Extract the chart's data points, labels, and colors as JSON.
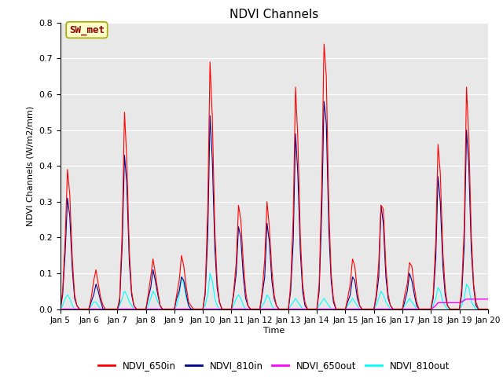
{
  "title": "NDVI Channels",
  "ylabel": "NDVI Channels (W/m2/mm)",
  "xlabel": "Time",
  "xlim_start": 5.0,
  "xlim_end": 20.0,
  "ylim": [
    0.0,
    0.8
  ],
  "yticks": [
    0.0,
    0.1,
    0.2,
    0.3,
    0.4,
    0.5,
    0.6,
    0.7,
    0.8
  ],
  "xtick_positions": [
    5,
    6,
    7,
    8,
    9,
    10,
    11,
    12,
    13,
    14,
    15,
    16,
    17,
    18,
    19,
    20
  ],
  "xtick_labels": [
    "Jan 5",
    "Jan 6",
    "Jan 7",
    "Jan 8",
    "Jan 9",
    "Jan 10",
    "Jan 11",
    "Jan 12",
    "Jan 13",
    "Jan 14",
    "Jan 15",
    "Jan 16",
    "Jan 17",
    "Jan 18",
    "Jan 19",
    "Jan 20"
  ],
  "annotation_text": "SW_met",
  "annotation_color": "#8B0000",
  "annotation_bg": "#ffffcc",
  "annotation_edge": "#aaaa00",
  "background_color": "#e8e8e8",
  "legend_labels": [
    "NDVI_650in",
    "NDVI_810in",
    "NDVI_650out",
    "NDVI_810out"
  ],
  "legend_colors": [
    "red",
    "darkblue",
    "magenta",
    "cyan"
  ],
  "colors": {
    "NDVI_650in": "red",
    "NDVI_810in": "darkblue",
    "NDVI_650out": "magenta",
    "NDVI_810out": "cyan"
  },
  "series": {
    "x": [
      5.0,
      5.08,
      5.17,
      5.25,
      5.33,
      5.42,
      5.5,
      5.58,
      5.67,
      5.75,
      5.83,
      5.92,
      6.0,
      6.08,
      6.17,
      6.25,
      6.33,
      6.42,
      6.5,
      6.58,
      6.67,
      6.75,
      6.83,
      6.92,
      7.0,
      7.08,
      7.17,
      7.25,
      7.33,
      7.42,
      7.5,
      7.58,
      7.67,
      7.75,
      7.83,
      7.92,
      8.0,
      8.08,
      8.17,
      8.25,
      8.33,
      8.42,
      8.5,
      8.58,
      8.67,
      8.75,
      8.83,
      8.92,
      9.0,
      9.08,
      9.17,
      9.25,
      9.33,
      9.42,
      9.5,
      9.58,
      9.67,
      9.75,
      9.83,
      9.92,
      10.0,
      10.08,
      10.17,
      10.25,
      10.33,
      10.42,
      10.5,
      10.58,
      10.67,
      10.75,
      10.83,
      10.92,
      11.0,
      11.08,
      11.17,
      11.25,
      11.33,
      11.42,
      11.5,
      11.58,
      11.67,
      11.75,
      11.83,
      11.92,
      12.0,
      12.08,
      12.17,
      12.25,
      12.33,
      12.42,
      12.5,
      12.58,
      12.67,
      12.75,
      12.83,
      12.92,
      13.0,
      13.08,
      13.17,
      13.25,
      13.33,
      13.42,
      13.5,
      13.58,
      13.67,
      13.75,
      13.83,
      13.92,
      14.0,
      14.08,
      14.17,
      14.25,
      14.33,
      14.42,
      14.5,
      14.58,
      14.67,
      14.75,
      14.83,
      14.92,
      15.0,
      15.08,
      15.17,
      15.25,
      15.33,
      15.42,
      15.5,
      15.58,
      15.67,
      15.75,
      15.83,
      15.92,
      16.0,
      16.08,
      16.17,
      16.25,
      16.33,
      16.42,
      16.5,
      16.58,
      16.67,
      16.75,
      16.83,
      16.92,
      17.0,
      17.08,
      17.17,
      17.25,
      17.33,
      17.42,
      17.5,
      17.58,
      17.67,
      17.75,
      17.83,
      17.92,
      18.0,
      18.08,
      18.17,
      18.25,
      18.33,
      18.42,
      18.5,
      18.58,
      18.67,
      18.75,
      18.83,
      18.92,
      19.0,
      19.08,
      19.17,
      19.25,
      19.33,
      19.42,
      19.5,
      19.58,
      19.67,
      19.75,
      19.83,
      19.92,
      20.0
    ],
    "NDVI_650in": [
      0.0,
      0.05,
      0.2,
      0.39,
      0.32,
      0.14,
      0.04,
      0.01,
      0.0,
      0.0,
      0.0,
      0.0,
      0.0,
      0.03,
      0.08,
      0.11,
      0.07,
      0.03,
      0.01,
      0.0,
      0.0,
      0.0,
      0.0,
      0.0,
      0.0,
      0.03,
      0.22,
      0.55,
      0.42,
      0.16,
      0.05,
      0.01,
      0.0,
      0.0,
      0.0,
      0.0,
      0.0,
      0.04,
      0.09,
      0.14,
      0.1,
      0.05,
      0.01,
      0.0,
      0.0,
      0.0,
      0.0,
      0.0,
      0.0,
      0.04,
      0.08,
      0.15,
      0.12,
      0.06,
      0.02,
      0.01,
      0.0,
      0.0,
      0.0,
      0.0,
      0.0,
      0.05,
      0.28,
      0.69,
      0.54,
      0.22,
      0.08,
      0.02,
      0.0,
      0.0,
      0.0,
      0.0,
      0.0,
      0.05,
      0.13,
      0.29,
      0.25,
      0.13,
      0.05,
      0.01,
      0.0,
      0.0,
      0.0,
      0.0,
      0.0,
      0.05,
      0.14,
      0.3,
      0.23,
      0.11,
      0.04,
      0.01,
      0.0,
      0.0,
      0.0,
      0.0,
      0.0,
      0.07,
      0.26,
      0.62,
      0.48,
      0.2,
      0.07,
      0.02,
      0.0,
      0.0,
      0.0,
      0.0,
      0.0,
      0.07,
      0.35,
      0.74,
      0.65,
      0.28,
      0.1,
      0.03,
      0.0,
      0.0,
      0.0,
      0.0,
      0.0,
      0.03,
      0.07,
      0.14,
      0.12,
      0.05,
      0.01,
      0.0,
      0.0,
      0.0,
      0.0,
      0.0,
      0.0,
      0.04,
      0.13,
      0.29,
      0.28,
      0.12,
      0.04,
      0.01,
      0.0,
      0.0,
      0.0,
      0.0,
      0.0,
      0.04,
      0.07,
      0.13,
      0.12,
      0.06,
      0.02,
      0.0,
      0.0,
      0.0,
      0.0,
      0.0,
      0.0,
      0.04,
      0.19,
      0.46,
      0.38,
      0.16,
      0.06,
      0.01,
      0.0,
      0.0,
      0.0,
      0.0,
      0.0,
      0.06,
      0.23,
      0.62,
      0.48,
      0.2,
      0.07,
      0.02,
      0.0,
      0.0,
      0.0,
      0.0,
      0.0
    ],
    "NDVI_810in": [
      0.0,
      0.04,
      0.16,
      0.31,
      0.26,
      0.11,
      0.03,
      0.01,
      0.0,
      0.0,
      0.0,
      0.0,
      0.0,
      0.02,
      0.04,
      0.07,
      0.05,
      0.02,
      0.0,
      0.0,
      0.0,
      0.0,
      0.0,
      0.0,
      0.0,
      0.02,
      0.18,
      0.43,
      0.35,
      0.13,
      0.04,
      0.01,
      0.0,
      0.0,
      0.0,
      0.0,
      0.0,
      0.03,
      0.06,
      0.11,
      0.08,
      0.04,
      0.01,
      0.0,
      0.0,
      0.0,
      0.0,
      0.0,
      0.0,
      0.03,
      0.05,
      0.09,
      0.08,
      0.04,
      0.01,
      0.0,
      0.0,
      0.0,
      0.0,
      0.0,
      0.0,
      0.04,
      0.2,
      0.54,
      0.42,
      0.17,
      0.06,
      0.02,
      0.0,
      0.0,
      0.0,
      0.0,
      0.0,
      0.04,
      0.1,
      0.23,
      0.2,
      0.09,
      0.03,
      0.01,
      0.0,
      0.0,
      0.0,
      0.0,
      0.0,
      0.04,
      0.09,
      0.24,
      0.19,
      0.08,
      0.03,
      0.01,
      0.0,
      0.0,
      0.0,
      0.0,
      0.0,
      0.05,
      0.19,
      0.49,
      0.38,
      0.16,
      0.05,
      0.01,
      0.0,
      0.0,
      0.0,
      0.0,
      0.0,
      0.05,
      0.27,
      0.58,
      0.52,
      0.22,
      0.08,
      0.02,
      0.0,
      0.0,
      0.0,
      0.0,
      0.0,
      0.02,
      0.04,
      0.09,
      0.08,
      0.03,
      0.01,
      0.0,
      0.0,
      0.0,
      0.0,
      0.0,
      0.0,
      0.03,
      0.09,
      0.29,
      0.24,
      0.09,
      0.03,
      0.01,
      0.0,
      0.0,
      0.0,
      0.0,
      0.0,
      0.02,
      0.05,
      0.1,
      0.08,
      0.04,
      0.01,
      0.0,
      0.0,
      0.0,
      0.0,
      0.0,
      0.0,
      0.03,
      0.14,
      0.37,
      0.3,
      0.12,
      0.04,
      0.01,
      0.0,
      0.0,
      0.0,
      0.0,
      0.0,
      0.04,
      0.18,
      0.5,
      0.4,
      0.16,
      0.06,
      0.01,
      0.0,
      0.0,
      0.0,
      0.0,
      0.0
    ],
    "NDVI_650out": [
      0.0,
      0.0,
      0.0,
      0.0,
      0.0,
      0.0,
      0.0,
      0.0,
      0.0,
      0.0,
      0.0,
      0.0,
      0.0,
      0.0,
      0.0,
      0.0,
      0.0,
      0.0,
      0.0,
      0.0,
      0.0,
      0.0,
      0.0,
      0.0,
      0.0,
      0.0,
      0.0,
      0.0,
      0.0,
      0.0,
      0.0,
      0.0,
      0.0,
      0.0,
      0.0,
      0.0,
      0.0,
      0.0,
      0.0,
      0.0,
      0.0,
      0.0,
      0.0,
      0.0,
      0.0,
      0.0,
      0.0,
      0.0,
      0.0,
      0.0,
      0.0,
      0.0,
      0.0,
      0.0,
      0.0,
      0.0,
      0.0,
      0.0,
      0.0,
      0.0,
      0.0,
      0.0,
      0.0,
      0.0,
      0.0,
      0.0,
      0.0,
      0.0,
      0.0,
      0.0,
      0.0,
      0.0,
      0.0,
      0.0,
      0.0,
      0.0,
      0.0,
      0.0,
      0.0,
      0.0,
      0.0,
      0.0,
      0.0,
      0.0,
      0.0,
      0.0,
      0.0,
      0.0,
      0.0,
      0.0,
      0.0,
      0.0,
      0.0,
      0.0,
      0.0,
      0.0,
      0.0,
      0.0,
      0.0,
      0.0,
      0.0,
      0.0,
      0.0,
      0.0,
      0.0,
      0.0,
      0.0,
      0.0,
      0.0,
      0.0,
      0.0,
      0.0,
      0.0,
      0.0,
      0.0,
      0.0,
      0.0,
      0.0,
      0.0,
      0.0,
      0.0,
      0.0,
      0.0,
      0.0,
      0.0,
      0.0,
      0.0,
      0.0,
      0.0,
      0.0,
      0.0,
      0.0,
      0.0,
      0.0,
      0.0,
      0.0,
      0.0,
      0.0,
      0.0,
      0.0,
      0.0,
      0.0,
      0.0,
      0.0,
      0.0,
      0.0,
      0.0,
      0.0,
      0.0,
      0.0,
      0.0,
      0.0,
      0.0,
      0.0,
      0.0,
      0.0,
      0.0,
      0.004,
      0.01,
      0.018,
      0.018,
      0.018,
      0.018,
      0.018,
      0.018,
      0.018,
      0.018,
      0.018,
      0.018,
      0.02,
      0.025,
      0.028,
      0.028,
      0.028,
      0.028,
      0.028,
      0.028,
      0.028,
      0.028,
      0.028,
      0.028
    ],
    "NDVI_810out": [
      0.0,
      0.01,
      0.03,
      0.04,
      0.03,
      0.01,
      0.0,
      0.0,
      0.0,
      0.0,
      0.0,
      0.0,
      0.0,
      0.01,
      0.02,
      0.02,
      0.01,
      0.0,
      0.0,
      0.0,
      0.0,
      0.0,
      0.0,
      0.0,
      0.0,
      0.01,
      0.03,
      0.05,
      0.04,
      0.02,
      0.01,
      0.0,
      0.0,
      0.0,
      0.0,
      0.0,
      0.0,
      0.01,
      0.03,
      0.05,
      0.04,
      0.02,
      0.01,
      0.0,
      0.0,
      0.0,
      0.0,
      0.0,
      0.0,
      0.01,
      0.04,
      0.09,
      0.07,
      0.03,
      0.01,
      0.0,
      0.0,
      0.0,
      0.0,
      0.0,
      0.0,
      0.01,
      0.04,
      0.1,
      0.08,
      0.03,
      0.01,
      0.0,
      0.0,
      0.0,
      0.0,
      0.0,
      0.0,
      0.01,
      0.03,
      0.04,
      0.03,
      0.01,
      0.0,
      0.0,
      0.0,
      0.0,
      0.0,
      0.0,
      0.0,
      0.01,
      0.02,
      0.04,
      0.03,
      0.01,
      0.0,
      0.0,
      0.0,
      0.0,
      0.0,
      0.0,
      0.0,
      0.01,
      0.02,
      0.03,
      0.02,
      0.01,
      0.0,
      0.0,
      0.0,
      0.0,
      0.0,
      0.0,
      0.0,
      0.01,
      0.02,
      0.03,
      0.02,
      0.01,
      0.0,
      0.0,
      0.0,
      0.0,
      0.0,
      0.0,
      0.0,
      0.01,
      0.02,
      0.03,
      0.02,
      0.01,
      0.0,
      0.0,
      0.0,
      0.0,
      0.0,
      0.0,
      0.0,
      0.01,
      0.03,
      0.05,
      0.04,
      0.02,
      0.01,
      0.0,
      0.0,
      0.0,
      0.0,
      0.0,
      0.0,
      0.01,
      0.02,
      0.03,
      0.02,
      0.01,
      0.0,
      0.0,
      0.0,
      0.0,
      0.0,
      0.0,
      0.0,
      0.01,
      0.03,
      0.06,
      0.05,
      0.02,
      0.01,
      0.0,
      0.0,
      0.0,
      0.0,
      0.0,
      0.0,
      0.01,
      0.03,
      0.07,
      0.06,
      0.02,
      0.01,
      0.0,
      0.0,
      0.0,
      0.0,
      0.0,
      0.0
    ]
  }
}
